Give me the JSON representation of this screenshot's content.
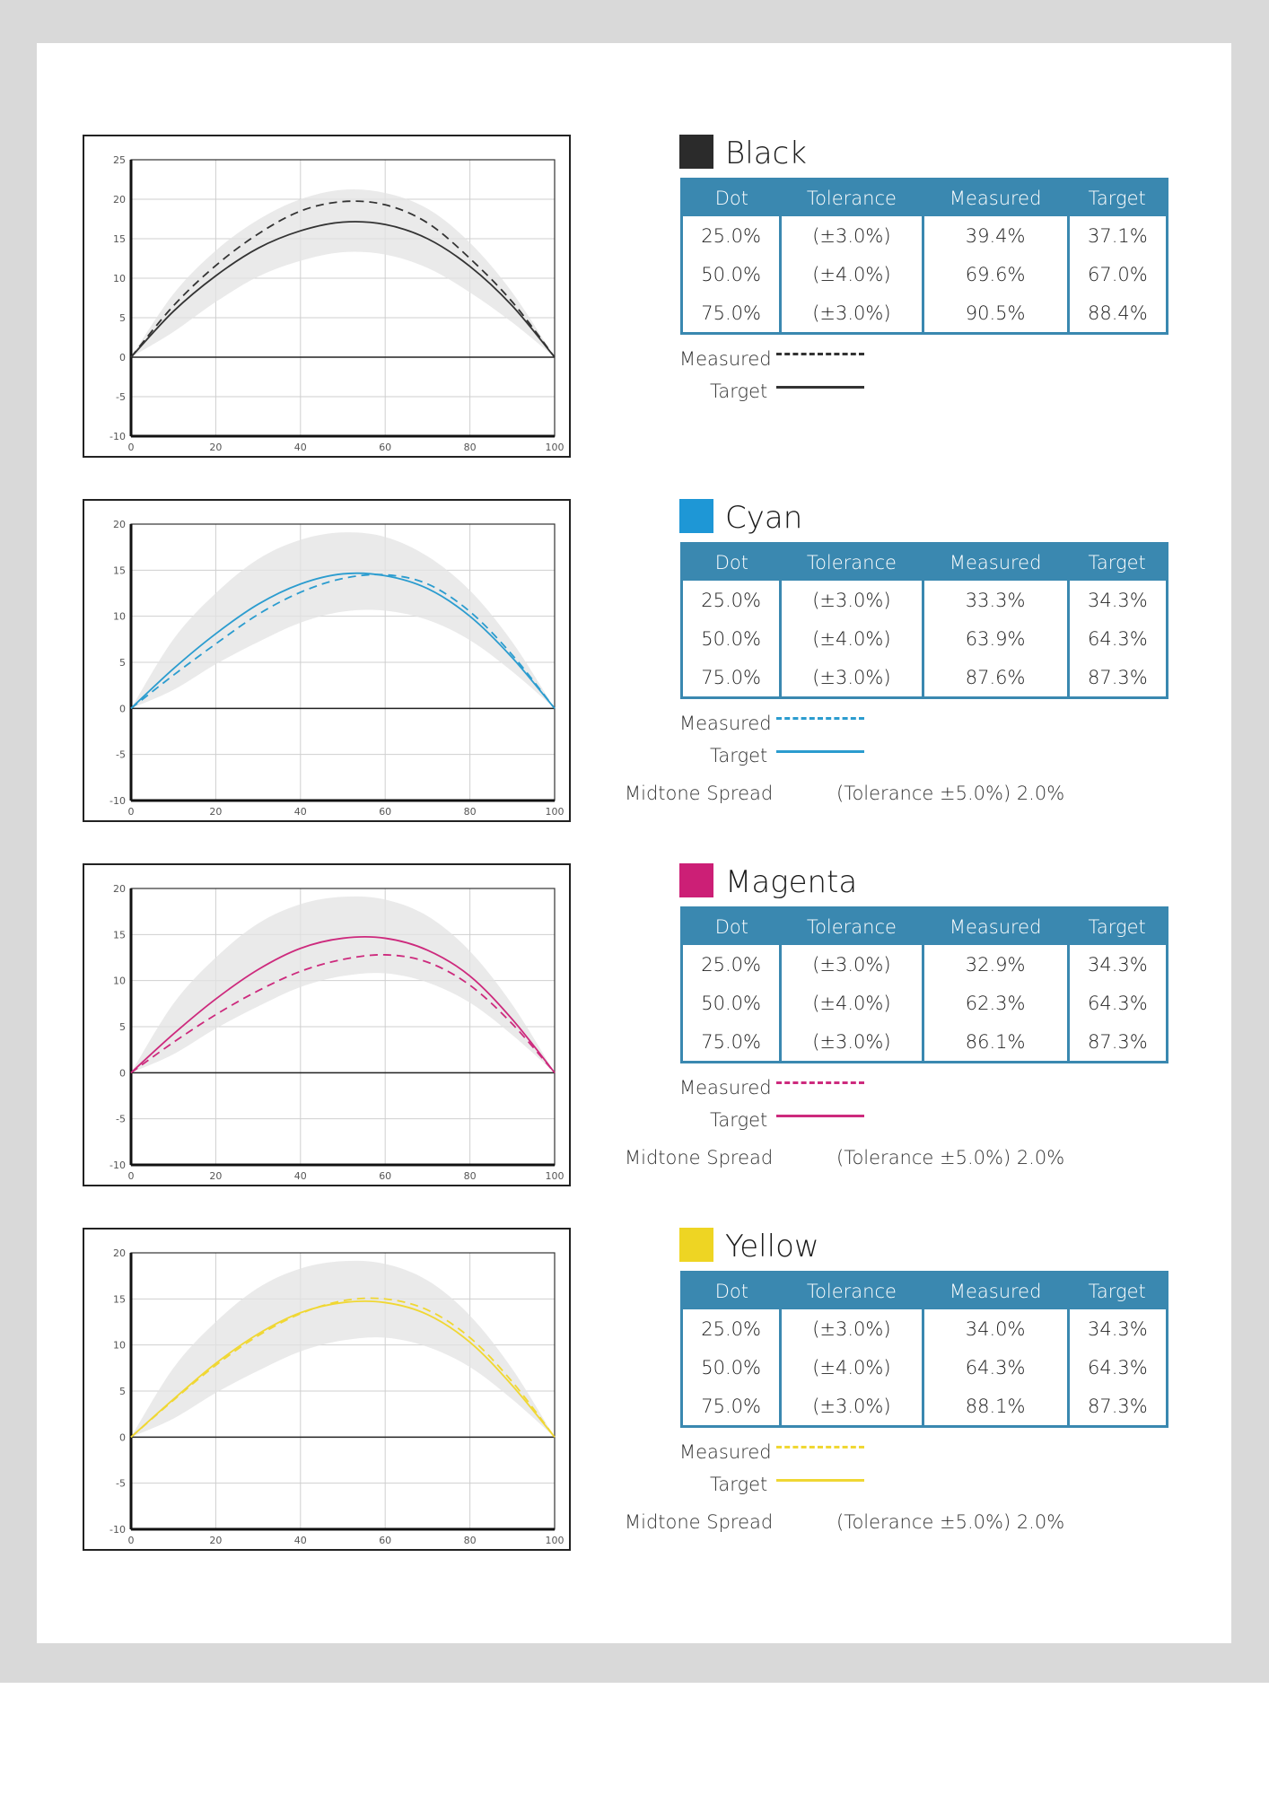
{
  "chart_data": [
    {
      "type": "line",
      "name": "Black",
      "color": "#333333",
      "x": [
        0,
        10,
        20,
        30,
        40,
        50,
        60,
        70,
        80,
        90,
        100
      ],
      "series": [
        {
          "name": "Measured",
          "style": "dashed",
          "values": [
            0,
            6.5,
            11.6,
            15.6,
            18.5,
            19.7,
            19.3,
            17,
            12.5,
            7,
            0
          ]
        },
        {
          "name": "Target",
          "style": "solid",
          "values": [
            0,
            5.8,
            10.3,
            13.8,
            16,
            17.1,
            16.8,
            15,
            11.5,
            6.5,
            0
          ]
        }
      ],
      "tolerance_band": {
        "upper": [
          0,
          8,
          13.5,
          17.4,
          20,
          21.2,
          20.8,
          18.8,
          14.5,
          8.2,
          0
        ],
        "lower": [
          0,
          3.2,
          7,
          10.2,
          12.2,
          13.3,
          13,
          11.3,
          8.2,
          4.4,
          0
        ]
      },
      "xlim": [
        0,
        100
      ],
      "ylim": [
        -10,
        25
      ],
      "xticks": [
        0,
        20,
        40,
        60,
        80,
        100
      ],
      "yticks": [
        25,
        20,
        15,
        10,
        5,
        0,
        -5,
        -10
      ]
    },
    {
      "type": "line",
      "name": "Cyan",
      "color": "#2b9ccf",
      "x": [
        0,
        10,
        20,
        30,
        40,
        50,
        60,
        70,
        80,
        90,
        100
      ],
      "series": [
        {
          "name": "Measured",
          "style": "dashed",
          "values": [
            0,
            3.6,
            7,
            10.2,
            12.6,
            14.1,
            14.5,
            13.5,
            10.5,
            5.8,
            0
          ]
        },
        {
          "name": "Target",
          "style": "solid",
          "values": [
            0,
            4.3,
            8.1,
            11.3,
            13.5,
            14.6,
            14.4,
            13,
            10,
            5.5,
            0
          ]
        }
      ],
      "tolerance_band": {
        "upper": [
          0,
          7.5,
          12.5,
          16.2,
          18.3,
          19.1,
          18.6,
          16.5,
          12.8,
          7.2,
          0
        ],
        "lower": [
          0,
          2,
          4.8,
          7.2,
          9.3,
          10.5,
          10.6,
          9.6,
          7.4,
          4,
          0
        ]
      },
      "xlim": [
        0,
        100
      ],
      "ylim": [
        -10,
        20
      ],
      "xticks": [
        0,
        20,
        40,
        60,
        80,
        100
      ],
      "yticks": [
        20,
        15,
        10,
        5,
        0,
        -5,
        -10
      ]
    },
    {
      "type": "line",
      "name": "Magenta",
      "color": "#cd2a7d",
      "x": [
        0,
        10,
        20,
        30,
        40,
        50,
        60,
        70,
        80,
        90,
        100
      ],
      "series": [
        {
          "name": "Measured",
          "style": "dashed",
          "values": [
            0,
            3.3,
            6.3,
            8.9,
            11,
            12.3,
            12.8,
            12,
            9.5,
            5.3,
            0
          ]
        },
        {
          "name": "Target",
          "style": "solid",
          "values": [
            0,
            4.2,
            8,
            11.2,
            13.5,
            14.6,
            14.6,
            13.3,
            10.5,
            5.8,
            0
          ]
        }
      ],
      "tolerance_band": {
        "upper": [
          0,
          7.5,
          12.5,
          16.2,
          18.3,
          19.1,
          18.8,
          17,
          13.2,
          7.4,
          0
        ],
        "lower": [
          0,
          2,
          4.8,
          7.2,
          9.3,
          10.5,
          10.8,
          9.8,
          7.6,
          4.1,
          0
        ]
      },
      "xlim": [
        0,
        100
      ],
      "ylim": [
        -10,
        20
      ],
      "xticks": [
        0,
        20,
        40,
        60,
        80,
        100
      ],
      "yticks": [
        20,
        15,
        10,
        5,
        0,
        -5,
        -10
      ]
    },
    {
      "type": "line",
      "name": "Yellow",
      "color": "#f0d733",
      "x": [
        0,
        10,
        20,
        30,
        40,
        50,
        60,
        70,
        80,
        90,
        100
      ],
      "series": [
        {
          "name": "Measured",
          "style": "dashed",
          "values": [
            0,
            4,
            7.8,
            11,
            13.4,
            14.8,
            15,
            13.8,
            10.8,
            6,
            0
          ]
        },
        {
          "name": "Target",
          "style": "solid",
          "values": [
            0,
            4.1,
            8,
            11.2,
            13.5,
            14.6,
            14.6,
            13.3,
            10.3,
            5.6,
            0
          ]
        }
      ],
      "tolerance_band": {
        "upper": [
          0,
          7.5,
          12.5,
          16.2,
          18.3,
          19.1,
          18.8,
          17,
          13.2,
          7.4,
          0
        ],
        "lower": [
          0,
          2,
          4.8,
          7.2,
          9.3,
          10.5,
          10.8,
          9.8,
          7.6,
          4.1,
          0
        ]
      },
      "xlim": [
        0,
        100
      ],
      "ylim": [
        -10,
        20
      ],
      "xticks": [
        0,
        20,
        40,
        60,
        80,
        100
      ],
      "yticks": [
        20,
        15,
        10,
        5,
        0,
        -5,
        -10
      ]
    }
  ],
  "table_headers": [
    "Dot",
    "Tolerance",
    "Measured",
    "Target"
  ],
  "legend": {
    "measured": "Measured",
    "target": "Target"
  },
  "spread_label": "Midtone Spread",
  "sections": [
    {
      "name": "Black",
      "color": "#2b2b2b",
      "rows": [
        [
          "25.0%",
          "(±3.0%)",
          "39.4%",
          "37.1%"
        ],
        [
          "50.0%",
          "(±4.0%)",
          "69.6%",
          "67.0%"
        ],
        [
          "75.0%",
          "(±3.0%)",
          "90.5%",
          "88.4%"
        ]
      ]
    },
    {
      "name": "Cyan",
      "color": "#1e97d6",
      "rows": [
        [
          "25.0%",
          "(±3.0%)",
          "33.3%",
          "34.3%"
        ],
        [
          "50.0%",
          "(±4.0%)",
          "63.9%",
          "64.3%"
        ],
        [
          "75.0%",
          "(±3.0%)",
          "87.6%",
          "87.3%"
        ]
      ],
      "spread": "(Tolerance ±5.0%)  2.0%"
    },
    {
      "name": "Magenta",
      "color": "#cc1f76",
      "rows": [
        [
          "25.0%",
          "(±3.0%)",
          "32.9%",
          "34.3%"
        ],
        [
          "50.0%",
          "(±4.0%)",
          "62.3%",
          "64.3%"
        ],
        [
          "75.0%",
          "(±3.0%)",
          "86.1%",
          "87.3%"
        ]
      ],
      "spread": "(Tolerance ±5.0%)  2.0%"
    },
    {
      "name": "Yellow",
      "color": "#eed523",
      "rows": [
        [
          "25.0%",
          "(±3.0%)",
          "34.0%",
          "34.3%"
        ],
        [
          "50.0%",
          "(±4.0%)",
          "64.3%",
          "64.3%"
        ],
        [
          "75.0%",
          "(±3.0%)",
          "88.1%",
          "87.3%"
        ]
      ],
      "spread": "(Tolerance ±5.0%)  2.0%"
    }
  ]
}
